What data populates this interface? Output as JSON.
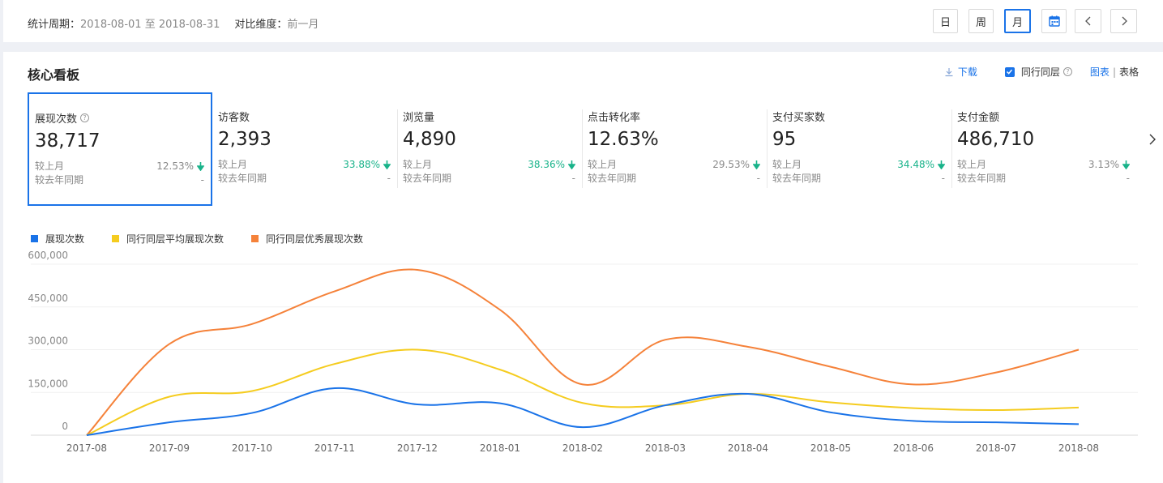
{
  "header": {
    "period_label": "统计周期：",
    "period_value": "2018-08-01 至 2018-08-31",
    "compare_label": "对比维度：",
    "compare_value": "前一月",
    "buttons": {
      "day": "日",
      "week": "周",
      "month": "月"
    }
  },
  "panel": {
    "title": "核心看板",
    "download": "下载",
    "peer": "同行同层",
    "view_chart": "图表",
    "view_sep": "|",
    "view_table": "表格"
  },
  "kpis": [
    {
      "name": "展现次数",
      "value": "38,717",
      "mom_label": "较上月",
      "mom_value": "12.53%",
      "yoy_label": "较去年同期",
      "yoy_value": "-"
    },
    {
      "name": "访客数",
      "value": "2,393",
      "mom_label": "较上月",
      "mom_value": "33.88%",
      "yoy_label": "较去年同期",
      "yoy_value": "-"
    },
    {
      "name": "浏览量",
      "value": "4,890",
      "mom_label": "较上月",
      "mom_value": "38.36%",
      "yoy_label": "较去年同期",
      "yoy_value": "-"
    },
    {
      "name": "点击转化率",
      "value": "12.63%",
      "mom_label": "较上月",
      "mom_value": "29.53%",
      "yoy_label": "较去年同期",
      "yoy_value": "-"
    },
    {
      "name": "支付买家数",
      "value": "95",
      "mom_label": "较上月",
      "mom_value": "34.48%",
      "yoy_label": "较去年同期",
      "yoy_value": "-"
    },
    {
      "name": "支付金额",
      "value": "486,710",
      "mom_label": "较上月",
      "mom_value": "3.13%",
      "yoy_label": "较去年同期",
      "yoy_value": "-"
    }
  ],
  "colors": {
    "accent": "#1a73e8",
    "down_green": "#19b38a",
    "yellow": "#f5cc1f",
    "orange": "#f5823a"
  },
  "chart_data": {
    "type": "line",
    "categories": [
      "2017-08",
      "2017-09",
      "2017-10",
      "2017-11",
      "2017-12",
      "2018-01",
      "2018-02",
      "2018-03",
      "2018-04",
      "2018-05",
      "2018-06",
      "2018-07",
      "2018-08"
    ],
    "yticks": [
      "0",
      "150,000",
      "300,000",
      "450,000",
      "600,000"
    ],
    "ylim": [
      0,
      600000
    ],
    "series": [
      {
        "name": "展现次数",
        "color": "#1a73e8",
        "values": [
          0,
          45000,
          78000,
          165000,
          108000,
          112000,
          28000,
          105000,
          145000,
          80000,
          50000,
          45000,
          38717
        ]
      },
      {
        "name": "同行同层平均展现次数",
        "color": "#f5cc1f",
        "values": [
          0,
          135000,
          155000,
          250000,
          300000,
          230000,
          113000,
          105000,
          145000,
          115000,
          95000,
          88000,
          97000
        ]
      },
      {
        "name": "同行同层优秀展现次数",
        "color": "#f5823a",
        "values": [
          0,
          320000,
          390000,
          505000,
          580000,
          440000,
          178000,
          335000,
          310000,
          240000,
          178000,
          220000,
          300000
        ]
      }
    ]
  }
}
